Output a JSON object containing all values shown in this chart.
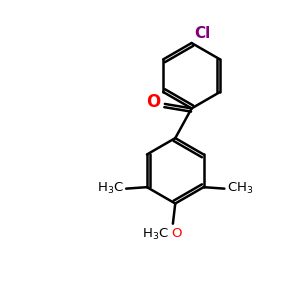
{
  "background_color": "#FFFFFF",
  "bond_color": "#000000",
  "atom_colors": {
    "O_carbonyl": "#FF0000",
    "O_methoxy": "#FF0000",
    "Cl": "#800080"
  },
  "figsize": [
    3.0,
    3.0
  ],
  "dpi": 100,
  "xlim": [
    0,
    10
  ],
  "ylim": [
    0,
    10
  ]
}
